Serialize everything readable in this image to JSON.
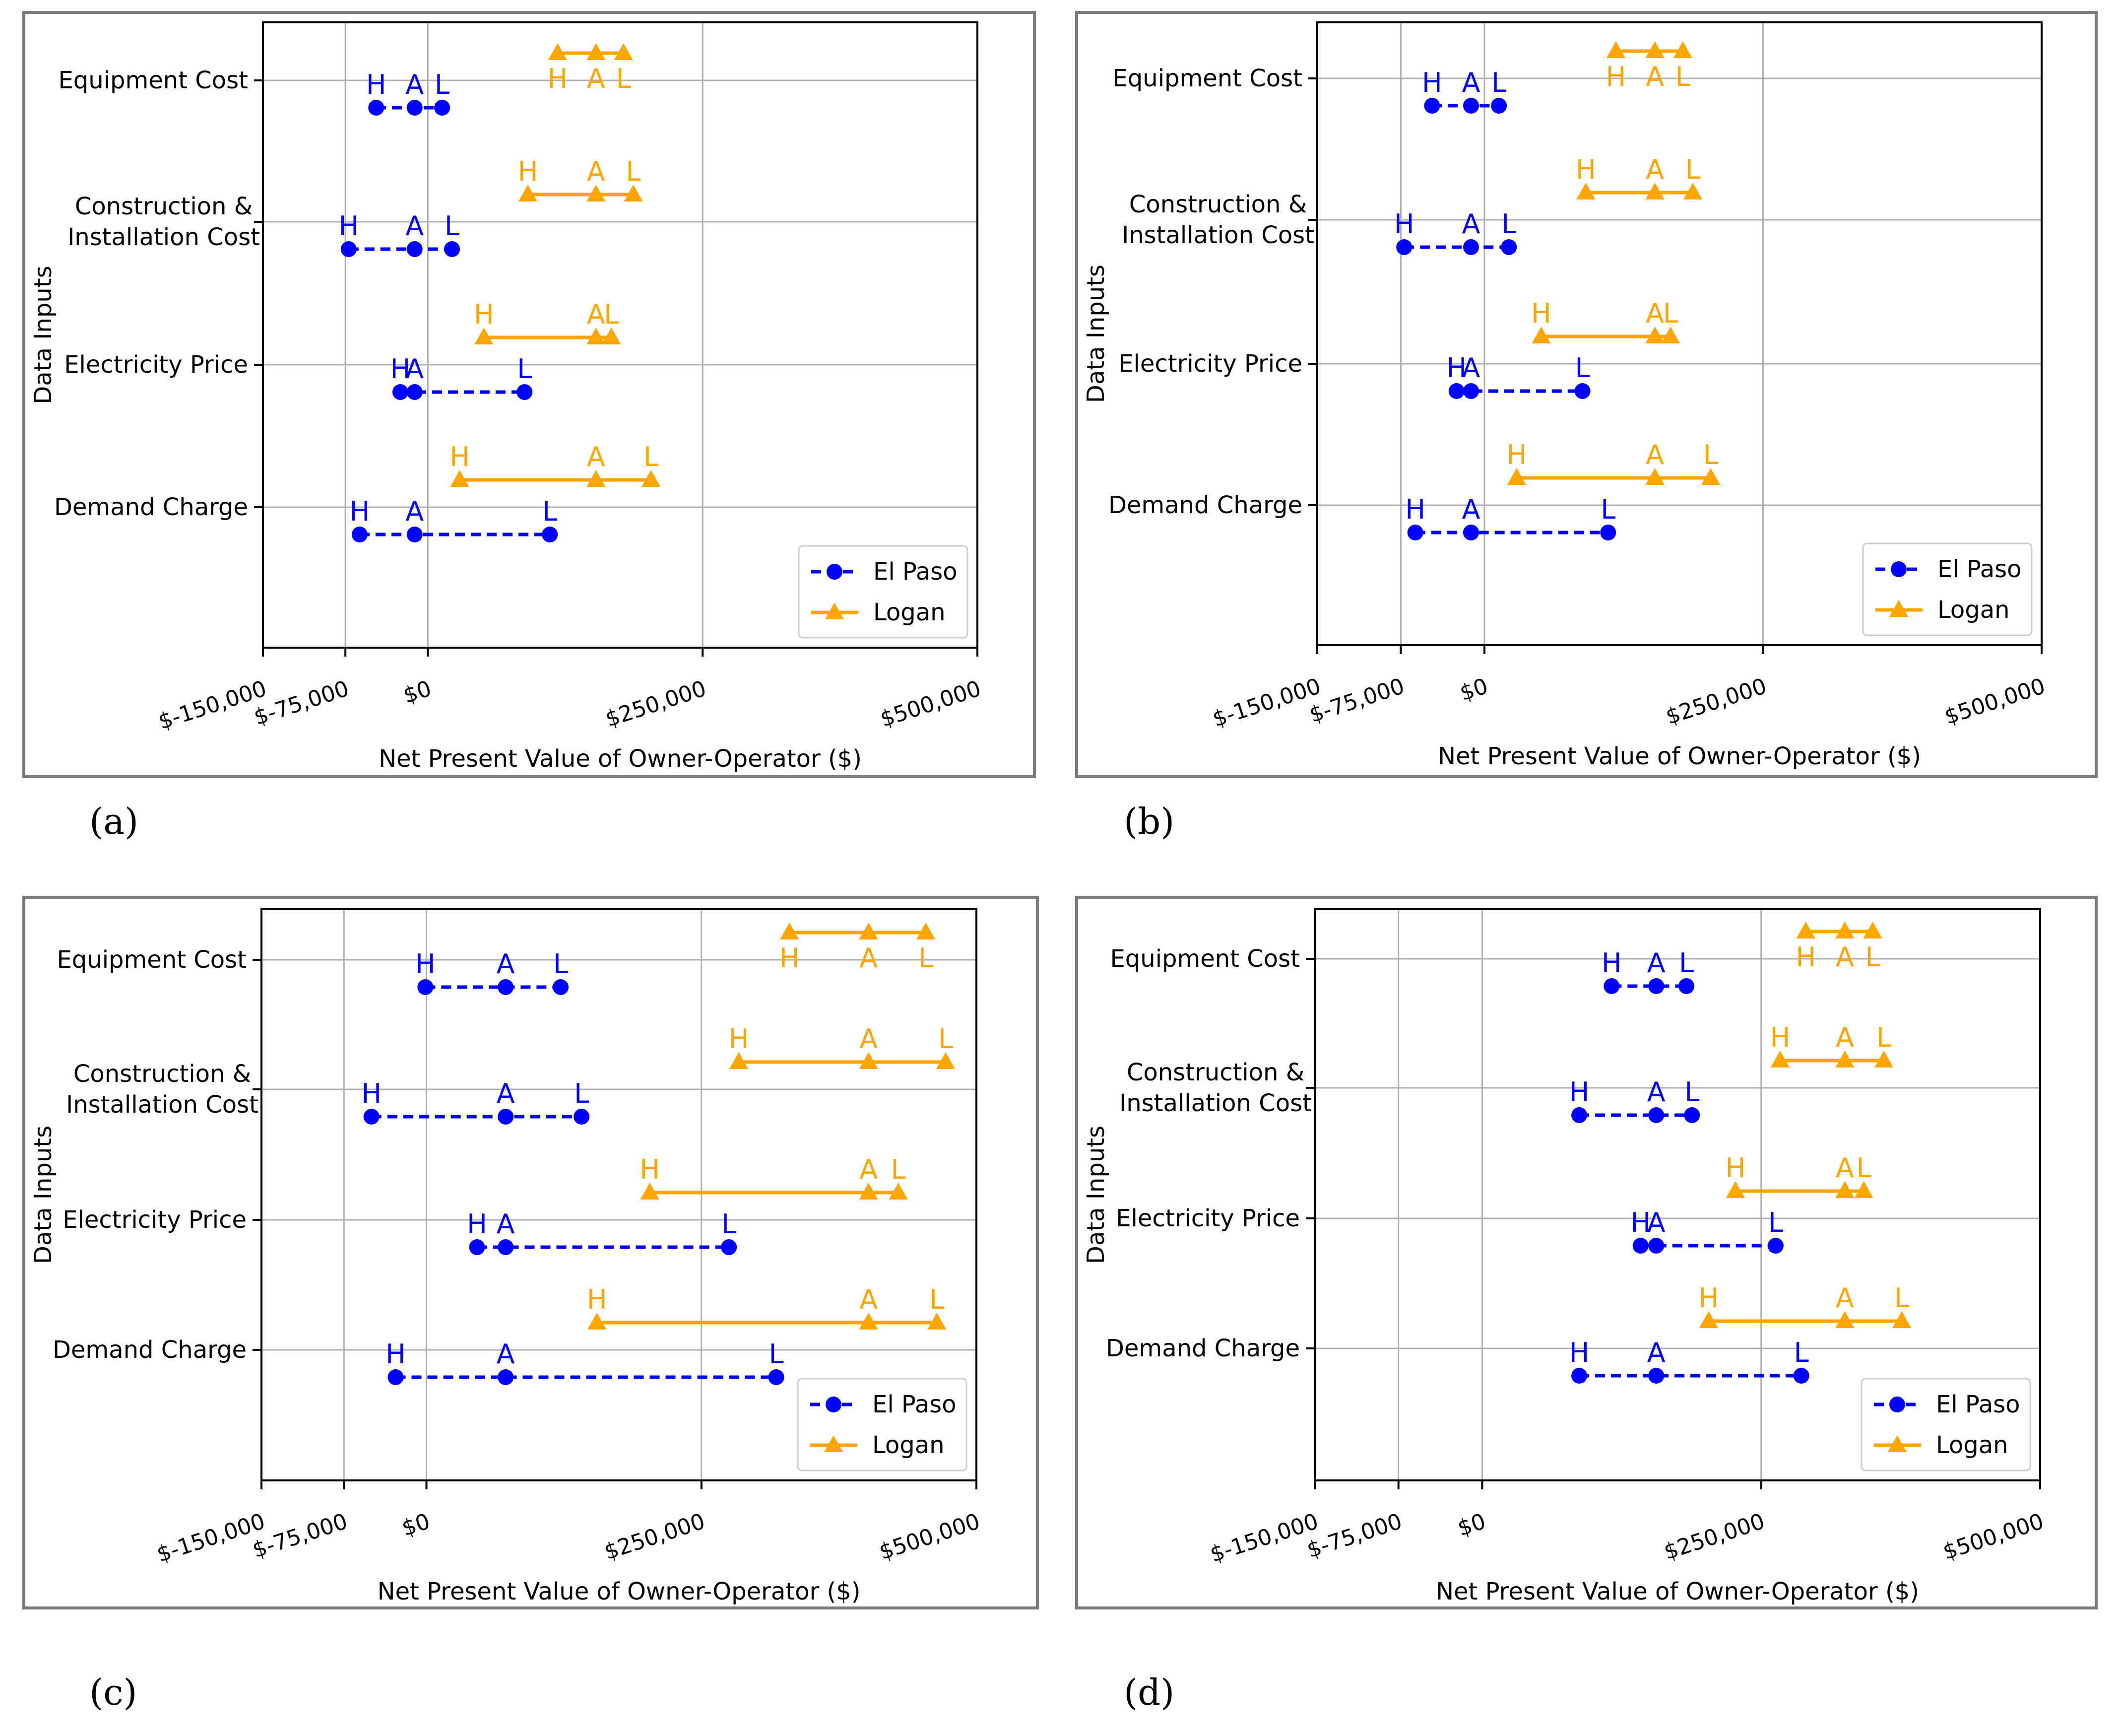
{
  "chart_data": [
    {
      "type": "dumbbell",
      "panel_label": "(a)",
      "xlabel": "Net Present Value of Owner-Operator ($)",
      "ylabel": "Data Inputs",
      "xlim": [
        -150000,
        500000
      ],
      "xticks": [
        -150000,
        -75000,
        0,
        250000,
        500000
      ],
      "xtick_labels": [
        "$-150,000",
        "$-75,000",
        "$0",
        "$250,000",
        "$500,000"
      ],
      "grid": true,
      "legend_position": "lower-right",
      "categories": [
        "Equipment Cost",
        "Construction &\nInstallation Cost",
        "Electricity Price",
        "Demand Charge"
      ],
      "point_labels": [
        "H",
        "A",
        "L"
      ],
      "series": [
        {
          "name": "El Paso",
          "color": "#0000ff",
          "marker": "circle",
          "linestyle": "dashed",
          "values": [
            [
              -47000,
              -12000,
              13000
            ],
            [
              -72000,
              -12000,
              22000
            ],
            [
              -25000,
              -12000,
              88000
            ],
            [
              -62000,
              -12000,
              111000
            ]
          ]
        },
        {
          "name": "Logan",
          "color": "#ffa500",
          "marker": "triangle",
          "linestyle": "solid",
          "values": [
            [
              118000,
              153000,
              178000
            ],
            [
              91000,
              153000,
              187000
            ],
            [
              51000,
              153000,
              167000
            ],
            [
              29000,
              153000,
              203000
            ]
          ]
        }
      ]
    },
    {
      "type": "dumbbell",
      "panel_label": "(b)",
      "xlabel": "Net Present Value of Owner-Operator ($)",
      "ylabel": "Data Inputs",
      "xlim": [
        -150000,
        500000
      ],
      "xticks": [
        -150000,
        -75000,
        0,
        250000,
        500000
      ],
      "xtick_labels": [
        "$-150,000",
        "$-75,000",
        "$0",
        "$250,000",
        "$500,000"
      ],
      "grid": true,
      "legend_position": "lower-right",
      "categories": [
        "Equipment Cost",
        "Construction &\nInstallation Cost",
        "Electricity Price",
        "Demand Charge"
      ],
      "point_labels": [
        "H",
        "A",
        "L"
      ],
      "series": [
        {
          "name": "El Paso",
          "color": "#0000ff",
          "marker": "circle",
          "linestyle": "dashed",
          "values": [
            [
              -47000,
              -12000,
              13000
            ],
            [
              -72000,
              -12000,
              22000
            ],
            [
              -25000,
              -12000,
              88000
            ],
            [
              -62000,
              -12000,
              111000
            ]
          ]
        },
        {
          "name": "Logan",
          "color": "#ffa500",
          "marker": "triangle",
          "linestyle": "solid",
          "values": [
            [
              118000,
              153000,
              178000
            ],
            [
              91000,
              153000,
              187000
            ],
            [
              51000,
              153000,
              167000
            ],
            [
              29000,
              153000,
              203000
            ]
          ]
        }
      ]
    },
    {
      "type": "dumbbell",
      "panel_label": "(c)",
      "xlabel": "Net Present Value of Owner-Operator ($)",
      "ylabel": "Data Inputs",
      "xlim": [
        -150000,
        500000
      ],
      "xticks": [
        -150000,
        -75000,
        0,
        250000,
        500000
      ],
      "xtick_labels": [
        "$-150,000",
        "$-75,000",
        "$0",
        "$250,000",
        "$500,000"
      ],
      "grid": true,
      "legend_position": "lower-right",
      "categories": [
        "Equipment Cost",
        "Construction &\nInstallation Cost",
        "Electricity Price",
        "Demand Charge"
      ],
      "point_labels": [
        "H",
        "A",
        "L"
      ],
      "series": [
        {
          "name": "El Paso",
          "color": "#0000ff",
          "marker": "circle",
          "linestyle": "dashed",
          "values": [
            [
              -1000,
              72000,
              122000
            ],
            [
              -50000,
              72000,
              141000
            ],
            [
              46000,
              72000,
              275000
            ],
            [
              -28000,
              72000,
              318000
            ]
          ]
        },
        {
          "name": "Logan",
          "color": "#ffa500",
          "marker": "triangle",
          "linestyle": "solid",
          "values": [
            [
              330000,
              402000,
              454000
            ],
            [
              284000,
              402000,
              472000
            ],
            [
              203000,
              402000,
              429000
            ],
            [
              155000,
              402000,
              464000
            ]
          ]
        }
      ]
    },
    {
      "type": "dumbbell",
      "panel_label": "(d)",
      "xlabel": "Net Present Value of Owner-Operator ($)",
      "ylabel": "Data Inputs",
      "xlim": [
        -150000,
        500000
      ],
      "xticks": [
        -150000,
        -75000,
        0,
        250000,
        500000
      ],
      "xtick_labels": [
        "$-150,000",
        "$-75,000",
        "$0",
        "$250,000",
        "$500,000"
      ],
      "grid": true,
      "legend_position": "lower-right",
      "categories": [
        "Equipment Cost",
        "Construction &\nInstallation Cost",
        "Electricity Price",
        "Demand Charge"
      ],
      "point_labels": [
        "H",
        "A",
        "L"
      ],
      "series": [
        {
          "name": "El Paso",
          "color": "#0000ff",
          "marker": "circle",
          "linestyle": "dashed",
          "values": [
            [
              116000,
              156000,
              183000
            ],
            [
              87000,
              156000,
              188000
            ],
            [
              142000,
              156000,
              263000
            ],
            [
              87000,
              156000,
              286000
            ]
          ]
        },
        {
          "name": "Logan",
          "color": "#ffa500",
          "marker": "triangle",
          "linestyle": "solid",
          "values": [
            [
              290000,
              325000,
              350000
            ],
            [
              267000,
              325000,
              360000
            ],
            [
              227000,
              325000,
              342000
            ],
            [
              203000,
              325000,
              376000
            ]
          ]
        }
      ]
    }
  ]
}
